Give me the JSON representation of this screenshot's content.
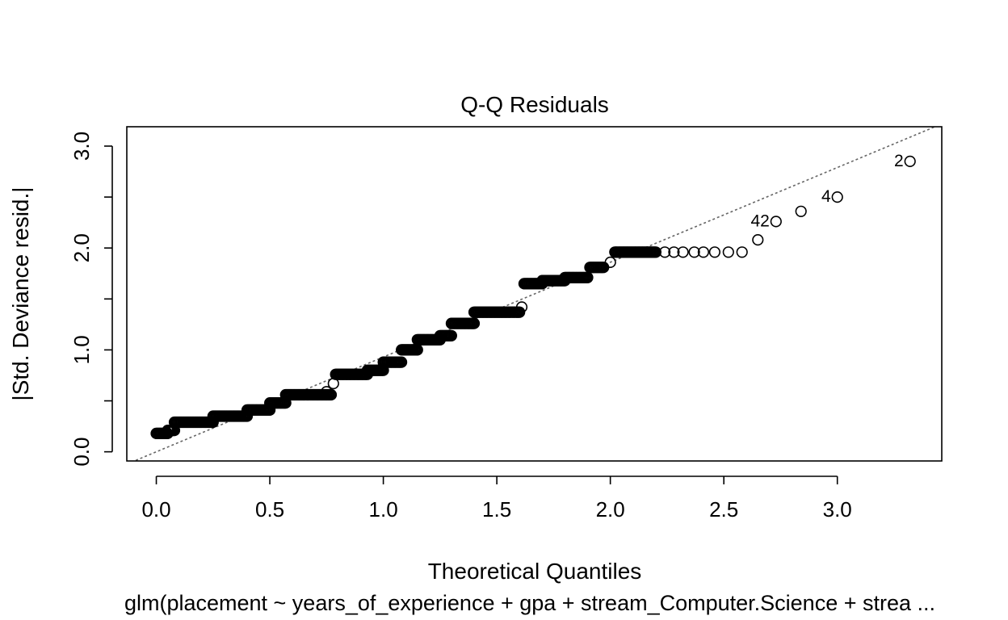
{
  "chart_data": {
    "type": "scatter",
    "title": "Q-Q Residuals",
    "xlabel": "Theoretical Quantiles",
    "ylabel": "|Std. Deviance resid.|",
    "subtitle": "glm(placement ~ years_of_experience + gpa + stream_Computer.Science + strea ...",
    "xlim": [
      -0.13,
      3.46
    ],
    "ylim": [
      -0.09,
      3.19
    ],
    "xticks": [
      "0.0",
      "0.5",
      "1.0",
      "1.5",
      "2.0",
      "2.5",
      "3.0"
    ],
    "yticks": [
      "0.0",
      "1.0",
      "2.0",
      "3.0"
    ],
    "grid": false,
    "reference_line": {
      "intercept": 0.0,
      "slope": 0.93
    },
    "segments": [
      {
        "x_start": 0.0,
        "x_end": 0.05,
        "y": 0.18
      },
      {
        "x_start": 0.05,
        "x_end": 0.08,
        "y": 0.21
      },
      {
        "x_start": 0.08,
        "x_end": 0.25,
        "y": 0.29
      },
      {
        "x_start": 0.25,
        "x_end": 0.4,
        "y": 0.35
      },
      {
        "x_start": 0.4,
        "x_end": 0.5,
        "y": 0.41
      },
      {
        "x_start": 0.5,
        "x_end": 0.57,
        "y": 0.48
      },
      {
        "x_start": 0.57,
        "x_end": 0.77,
        "y": 0.56
      },
      {
        "x_start": 0.79,
        "x_end": 0.93,
        "y": 0.76
      },
      {
        "x_start": 0.93,
        "x_end": 1.0,
        "y": 0.8
      },
      {
        "x_start": 1.0,
        "x_end": 1.08,
        "y": 0.88
      },
      {
        "x_start": 1.08,
        "x_end": 1.15,
        "y": 1.0
      },
      {
        "x_start": 1.15,
        "x_end": 1.25,
        "y": 1.1
      },
      {
        "x_start": 1.25,
        "x_end": 1.3,
        "y": 1.14
      },
      {
        "x_start": 1.3,
        "x_end": 1.4,
        "y": 1.26
      },
      {
        "x_start": 1.4,
        "x_end": 1.6,
        "y": 1.37
      },
      {
        "x_start": 1.62,
        "x_end": 1.7,
        "y": 1.65
      },
      {
        "x_start": 1.7,
        "x_end": 1.8,
        "y": 1.68
      },
      {
        "x_start": 1.8,
        "x_end": 1.9,
        "y": 1.71
      },
      {
        "x_start": 1.91,
        "x_end": 1.97,
        "y": 1.81
      },
      {
        "x_start": 2.02,
        "x_end": 2.2,
        "y": 1.96
      }
    ],
    "points": [
      {
        "x": 0.75,
        "y": 0.59
      },
      {
        "x": 0.78,
        "y": 0.67
      },
      {
        "x": 1.61,
        "y": 1.42
      },
      {
        "x": 2.0,
        "y": 1.86
      },
      {
        "x": 2.24,
        "y": 1.96
      },
      {
        "x": 2.28,
        "y": 1.96
      },
      {
        "x": 2.32,
        "y": 1.96
      },
      {
        "x": 2.37,
        "y": 1.96
      },
      {
        "x": 2.41,
        "y": 1.96
      },
      {
        "x": 2.46,
        "y": 1.96
      },
      {
        "x": 2.52,
        "y": 1.96
      },
      {
        "x": 2.58,
        "y": 1.96
      },
      {
        "x": 2.65,
        "y": 2.08
      },
      {
        "x": 2.73,
        "y": 2.26
      },
      {
        "x": 2.84,
        "y": 2.36
      },
      {
        "x": 3.0,
        "y": 2.5
      },
      {
        "x": 3.32,
        "y": 2.85
      }
    ],
    "point_labels": [
      {
        "x": 2.73,
        "y": 2.26,
        "text": "42"
      },
      {
        "x": 3.0,
        "y": 2.5,
        "text": "4"
      },
      {
        "x": 3.32,
        "y": 2.85,
        "text": "2"
      }
    ]
  }
}
